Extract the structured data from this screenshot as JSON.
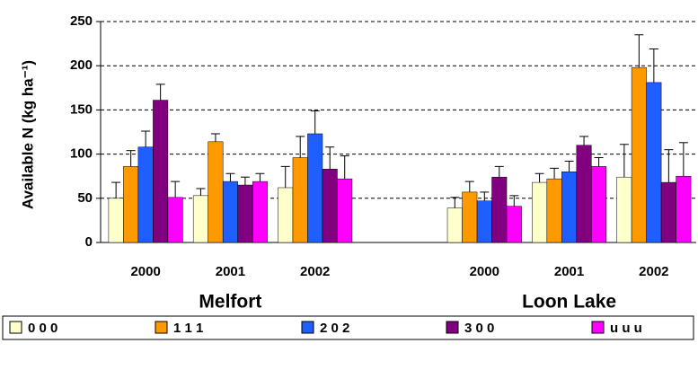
{
  "chart_data": {
    "type": "bar",
    "y_label": "Available N (kg ha⁻¹)",
    "categories": [
      "2000",
      "2001",
      "2002",
      null,
      "2000",
      "2001",
      "2002"
    ],
    "group_labels": [
      "Melfort",
      "Loon Lake"
    ],
    "series": [
      {
        "name": "0 0 0",
        "color": "#ffffcc",
        "values": [
          50,
          53,
          62,
          null,
          39,
          68,
          74
        ],
        "errors": [
          18,
          8,
          24,
          null,
          12,
          10,
          37
        ]
      },
      {
        "name": "1 1 1",
        "color": "#ff9900",
        "values": [
          86,
          114,
          96,
          null,
          57,
          72,
          198
        ],
        "errors": [
          18,
          9,
          24,
          null,
          12,
          12,
          37
        ]
      },
      {
        "name": "2 0 2",
        "color": "#1f5fff",
        "values": [
          108,
          69,
          123,
          null,
          47,
          80,
          181
        ],
        "errors": [
          18,
          9,
          26,
          null,
          10,
          12,
          38
        ]
      },
      {
        "name": "3 0 0",
        "color": "#800080",
        "values": [
          161,
          65,
          83,
          null,
          74,
          110,
          68
        ],
        "errors": [
          18,
          9,
          25,
          null,
          12,
          10,
          37
        ]
      },
      {
        "name": "u u u",
        "color": "#ff00ff",
        "values": [
          51,
          69,
          72,
          null,
          41,
          86,
          75
        ],
        "errors": [
          18,
          9,
          26,
          null,
          12,
          10,
          38
        ]
      }
    ],
    "ylim": [
      0,
      250
    ],
    "yticks": [
      0,
      50,
      100,
      150,
      200,
      250
    ],
    "grid": true
  }
}
